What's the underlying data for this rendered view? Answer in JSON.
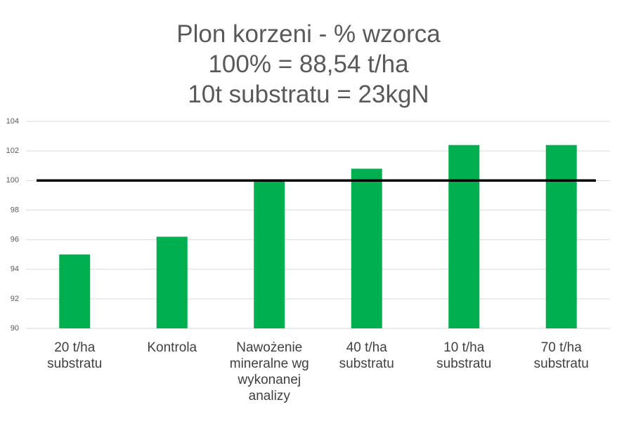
{
  "chart_data": {
    "type": "bar",
    "title": [
      "Plon korzeni - % wzorca",
      "100% = 88,54 t/ha",
      "10t substratu = 23kgN"
    ],
    "categories": [
      "20 t/ha substratu",
      "Kontrola",
      "Nawożenie mineralne wg wykonanej analizy",
      "40 t/ha substratu",
      "10 t/ha substratu",
      "70 t/ha substratu"
    ],
    "values": [
      95,
      96.2,
      100,
      100.8,
      102.4,
      102.4
    ],
    "color": "#00b050",
    "reference_line": 100,
    "ylim": [
      90,
      104
    ],
    "yticks": [
      90,
      92,
      94,
      96,
      98,
      100,
      102,
      104
    ],
    "grid": true
  }
}
